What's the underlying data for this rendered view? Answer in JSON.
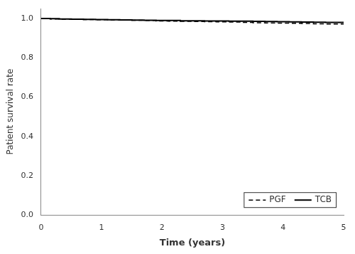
{
  "chart_data": {
    "type": "step",
    "x": [
      0,
      0.05,
      0.15,
      0.3,
      0.5,
      0.7,
      0.9,
      1.1,
      1.3,
      1.5,
      1.7,
      1.9,
      2.1,
      2.3,
      2.5,
      2.7,
      2.9,
      3.1,
      3.3,
      3.5,
      3.7,
      3.9,
      4.1,
      4.3,
      4.5,
      4.7,
      4.9,
      5.0
    ],
    "series": [
      {
        "name": "PGF",
        "color": "#000000",
        "line_style": "dashed",
        "values": [
          1.0,
          0.999,
          0.998,
          0.997,
          0.996,
          0.995,
          0.994,
          0.993,
          0.992,
          0.991,
          0.99,
          0.989,
          0.987,
          0.986,
          0.985,
          0.984,
          0.983,
          0.982,
          0.981,
          0.979,
          0.978,
          0.977,
          0.976,
          0.975,
          0.974,
          0.972,
          0.971,
          0.971
        ]
      },
      {
        "name": "TCB",
        "color": "#000000",
        "line_style": "solid",
        "values": [
          1.0,
          0.9995,
          0.999,
          0.998,
          0.997,
          0.996,
          0.995,
          0.994,
          0.993,
          0.992,
          0.991,
          0.99,
          0.989,
          0.989,
          0.988,
          0.988,
          0.987,
          0.987,
          0.986,
          0.986,
          0.985,
          0.984,
          0.983,
          0.982,
          0.981,
          0.98,
          0.979,
          0.979
        ]
      }
    ],
    "x_label": "Time (years)",
    "y_label": "Patient survival rate",
    "xlim": [
      0,
      5
    ],
    "ylim": [
      0.0,
      1.05
    ],
    "xticks": [
      0,
      1,
      2,
      3,
      4,
      5
    ],
    "yticks": [
      {
        "value": 0.0,
        "label": "0.0"
      },
      0.2,
      0.4,
      0.6,
      0.8,
      {
        "value": 1.0,
        "label": "1.0"
      }
    ],
    "grid": false,
    "legend": "lower right"
  }
}
